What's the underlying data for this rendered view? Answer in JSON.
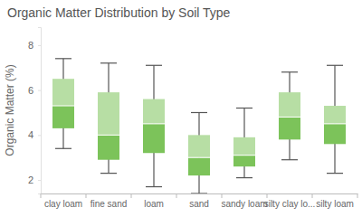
{
  "chart_data": {
    "type": "box",
    "title": "Organic Matter Distribution by Soil Type",
    "ylabel": "Organic Matter (%)",
    "categories": [
      "clay loam",
      "fine sand",
      "loam",
      "sand",
      "sandy loam",
      "silty clay lo...",
      "silty loam"
    ],
    "min": [
      3.4,
      2.3,
      1.7,
      1.4,
      2.1,
      2.9,
      2.3
    ],
    "q1": [
      4.3,
      2.9,
      3.2,
      2.2,
      2.6,
      3.8,
      3.6
    ],
    "median": [
      5.3,
      4.0,
      4.5,
      3.0,
      3.1,
      4.8,
      4.5
    ],
    "q3": [
      6.5,
      5.9,
      5.6,
      4.0,
      3.9,
      5.9,
      5.3
    ],
    "max": [
      7.4,
      7.2,
      7.1,
      5.0,
      5.2,
      6.8,
      7.1
    ],
    "color": "#7cc35a",
    "ylim": [
      1.4,
      8.8
    ],
    "yticks": [
      2,
      4,
      6,
      8
    ],
    "grid": false
  }
}
